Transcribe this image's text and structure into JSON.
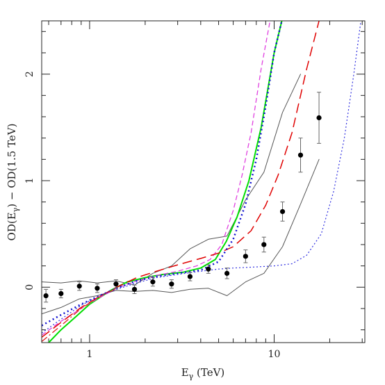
{
  "chart_data": {
    "type": "line",
    "xscale": "log",
    "xlabel_main": "E",
    "xlabel_sub": "γ",
    "xlabel_unit": " (TeV)",
    "ylabel_pre": "OD(E",
    "ylabel_sub": "γ",
    "ylabel_post": ") − OD(1.5 TeV)",
    "xlim": [
      0.55,
      31
    ],
    "ylim": [
      -0.52,
      2.5
    ],
    "xticks_major": [
      1,
      10
    ],
    "xtick_labels": [
      "1",
      "10"
    ],
    "yticks_major": [
      0,
      1,
      2
    ],
    "ytick_labels": [
      "0",
      "1",
      "2"
    ],
    "grid": false,
    "data_points": {
      "x": [
        0.58,
        0.7,
        0.88,
        1.1,
        1.39,
        1.75,
        2.2,
        2.78,
        3.5,
        4.4,
        5.55,
        7.0,
        8.8,
        11.1,
        13.9,
        17.5
      ],
      "y": [
        -0.08,
        -0.06,
        0.01,
        -0.01,
        0.03,
        -0.02,
        0.05,
        0.03,
        0.1,
        0.17,
        0.13,
        0.29,
        0.4,
        0.71,
        1.24,
        1.59
      ],
      "yerr": [
        0.06,
        0.04,
        0.04,
        0.04,
        0.04,
        0.04,
        0.04,
        0.04,
        0.04,
        0.04,
        0.05,
        0.06,
        0.07,
        0.09,
        0.16,
        0.24
      ]
    },
    "series": [
      {
        "style": "upper-band",
        "color": "#555555",
        "dash": "",
        "width": 1,
        "x": [
          0.55,
          0.7,
          0.88,
          1.1,
          1.39,
          1.75,
          2.2,
          2.78,
          3.5,
          4.4,
          5.55,
          7.0,
          8.8,
          11.1,
          13.9
        ],
        "y": [
          0.05,
          0.04,
          0.06,
          0.04,
          0.06,
          0.02,
          0.13,
          0.2,
          0.36,
          0.45,
          0.48,
          0.82,
          1.08,
          1.64,
          2.0
        ]
      },
      {
        "style": "lower-band",
        "color": "#555555",
        "dash": "",
        "width": 1,
        "x": [
          0.55,
          0.7,
          0.88,
          1.1,
          1.39,
          1.75,
          2.2,
          2.78,
          3.5,
          4.4,
          5.55,
          7.0,
          8.8,
          11.1,
          13.9,
          17.5
        ],
        "y": [
          -0.25,
          -0.19,
          -0.11,
          -0.08,
          -0.03,
          -0.04,
          -0.03,
          -0.05,
          -0.02,
          -0.01,
          -0.08,
          0.05,
          0.13,
          0.38,
          0.78,
          1.2
        ]
      },
      {
        "style": "green-solid",
        "color": "#00dd00",
        "dash": "",
        "width": 2,
        "x": [
          0.6,
          0.7,
          0.85,
          1.0,
          1.3,
          1.6,
          2.0,
          2.5,
          3.2,
          4.0,
          4.8,
          5.5,
          6.3,
          7.3,
          8.5,
          10.0,
          11.0
        ],
        "y": [
          -0.52,
          -0.4,
          -0.27,
          -0.16,
          -0.03,
          0.05,
          0.09,
          0.12,
          0.14,
          0.18,
          0.26,
          0.43,
          0.66,
          1.0,
          1.5,
          2.2,
          2.5
        ]
      },
      {
        "style": "magenta-short-dash",
        "color": "#e040e0",
        "dash": "7,4",
        "width": 1.3,
        "x": [
          0.55,
          0.7,
          0.9,
          1.1,
          1.4,
          1.8,
          2.3,
          3.0,
          3.8,
          4.5,
          5.2,
          6.0,
          6.7,
          7.5,
          8.5,
          9.5
        ],
        "y": [
          -0.45,
          -0.32,
          -0.2,
          -0.11,
          -0.01,
          0.06,
          0.11,
          0.15,
          0.2,
          0.26,
          0.4,
          0.72,
          1.05,
          1.45,
          2.05,
          2.5
        ]
      },
      {
        "style": "red-long-dash",
        "color": "#e00000",
        "dash": "14,7",
        "width": 1.5,
        "x": [
          0.55,
          0.7,
          0.9,
          1.1,
          1.4,
          1.8,
          2.3,
          3.0,
          4.0,
          5.0,
          6.0,
          7.5,
          9.0,
          10.5,
          12.5,
          15.0,
          17.5
        ],
        "y": [
          -0.47,
          -0.33,
          -0.19,
          -0.1,
          0.0,
          0.09,
          0.15,
          0.21,
          0.27,
          0.32,
          0.38,
          0.53,
          0.77,
          1.05,
          1.45,
          2.05,
          2.5
        ]
      },
      {
        "style": "blue-dotted-thick",
        "color": "#1010d0",
        "dash": "2,4",
        "width": 2.5,
        "x": [
          0.55,
          0.7,
          0.9,
          1.1,
          1.4,
          1.8,
          2.3,
          3.0,
          4.0,
          5.0,
          6.0,
          7.0,
          8.0,
          9.0,
          10.0,
          11.0
        ],
        "y": [
          -0.36,
          -0.26,
          -0.16,
          -0.09,
          -0.01,
          0.06,
          0.1,
          0.13,
          0.16,
          0.24,
          0.45,
          0.78,
          1.2,
          1.7,
          2.2,
          2.5
        ]
      },
      {
        "style": "blue-dotted-thin",
        "color": "#3030e0",
        "dash": "2,3",
        "width": 1.2,
        "x": [
          0.55,
          0.7,
          0.9,
          1.1,
          1.4,
          1.8,
          2.3,
          3.0,
          4.0,
          5.0,
          6.0,
          8.0,
          10.0,
          12.5,
          15.0,
          18.0,
          21.0,
          24.0,
          27.0,
          29.5
        ],
        "y": [
          -0.43,
          -0.3,
          -0.17,
          -0.09,
          -0.02,
          0.04,
          0.09,
          0.12,
          0.15,
          0.17,
          0.18,
          0.19,
          0.2,
          0.22,
          0.3,
          0.5,
          0.9,
          1.4,
          2.0,
          2.5
        ]
      },
      {
        "style": "magenta-red-dash-dot",
        "color": "#e02020",
        "dash": "10,4,2,4",
        "width": 1.3,
        "x": [
          0.55,
          0.7,
          0.9,
          1.1,
          1.4
        ],
        "y": [
          -0.51,
          -0.36,
          -0.2,
          -0.1,
          -0.01
        ]
      }
    ]
  }
}
